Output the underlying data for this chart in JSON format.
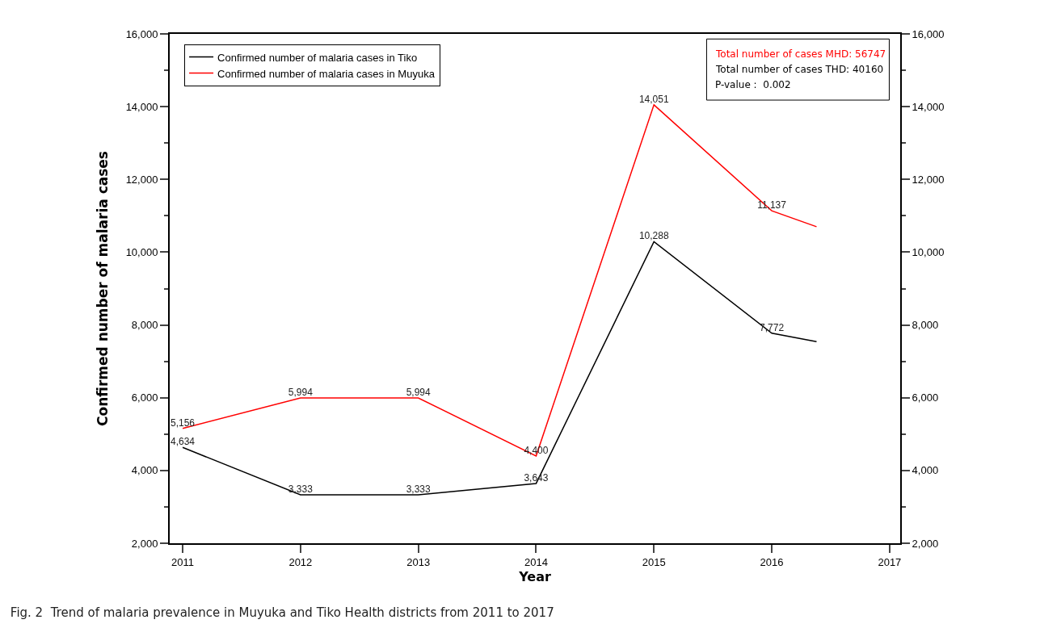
{
  "chart_data": {
    "type": "line",
    "title": "Fig. 2  Trend of malaria prevalence in Muyuka and Tiko Health districts from 2011 to 2017",
    "xlabel": "Year",
    "ylabel": "Confirmed number of malaria cases",
    "x": [
      2011,
      2012,
      2013,
      2014,
      2015,
      2016,
      2016.38
    ],
    "series": [
      {
        "name": "Confirmed number of malaria cases in Tiko",
        "color": "#000000",
        "values": [
          4634,
          3333,
          3333,
          3643,
          10288,
          7772,
          7540
        ],
        "value_labels": [
          "4,634",
          "3,333",
          "3,333",
          "3,643",
          "10,288",
          "7,772",
          null
        ]
      },
      {
        "name": "Confirmed number of malaria cases in Muyuka",
        "color": "#ff0000",
        "values": [
          5156,
          5994,
          5994,
          4400,
          14051,
          11137,
          10700
        ],
        "value_labels": [
          "5,156",
          "5,994",
          "5,994",
          "4,400",
          "14,051",
          "11,137",
          null
        ]
      }
    ],
    "xlim": [
      2010.89,
      2017.09
    ],
    "xticks": [
      2011,
      2012,
      2013,
      2014,
      2015,
      2016,
      2017
    ],
    "ylim": [
      2000,
      16000
    ],
    "yticks": [
      {
        "value": 2000,
        "label": "2,000"
      },
      {
        "value": 4000,
        "label": "4,000"
      },
      {
        "value": 6000,
        "label": "6,000"
      },
      {
        "value": 8000,
        "label": "8,000"
      },
      {
        "value": 10000,
        "label": "10,000"
      },
      {
        "value": 12000,
        "label": "12,000"
      },
      {
        "value": 14000,
        "label": "14,000"
      },
      {
        "value": 16000,
        "label": "16,000"
      }
    ],
    "y2lim": [
      2000,
      16000
    ],
    "y2ticks": [
      {
        "value": 2000,
        "label": "2,000"
      },
      {
        "value": 4000,
        "label": "4,000"
      },
      {
        "value": 6000,
        "label": "6,000"
      },
      {
        "value": 8000,
        "label": "8,000"
      },
      {
        "value": 10000,
        "label": "10,000"
      },
      {
        "value": 12000,
        "label": "12,000"
      },
      {
        "value": 14000,
        "label": "14,000"
      },
      {
        "value": 16000,
        "label": "16,000"
      }
    ],
    "annotations": [
      "Total number of cases MHD: 56747",
      "Total number of cases THD: 40160",
      "P-value :  0.002"
    ],
    "grid": false,
    "legend": "top left",
    "marker": "none",
    "line_style": "solid"
  }
}
